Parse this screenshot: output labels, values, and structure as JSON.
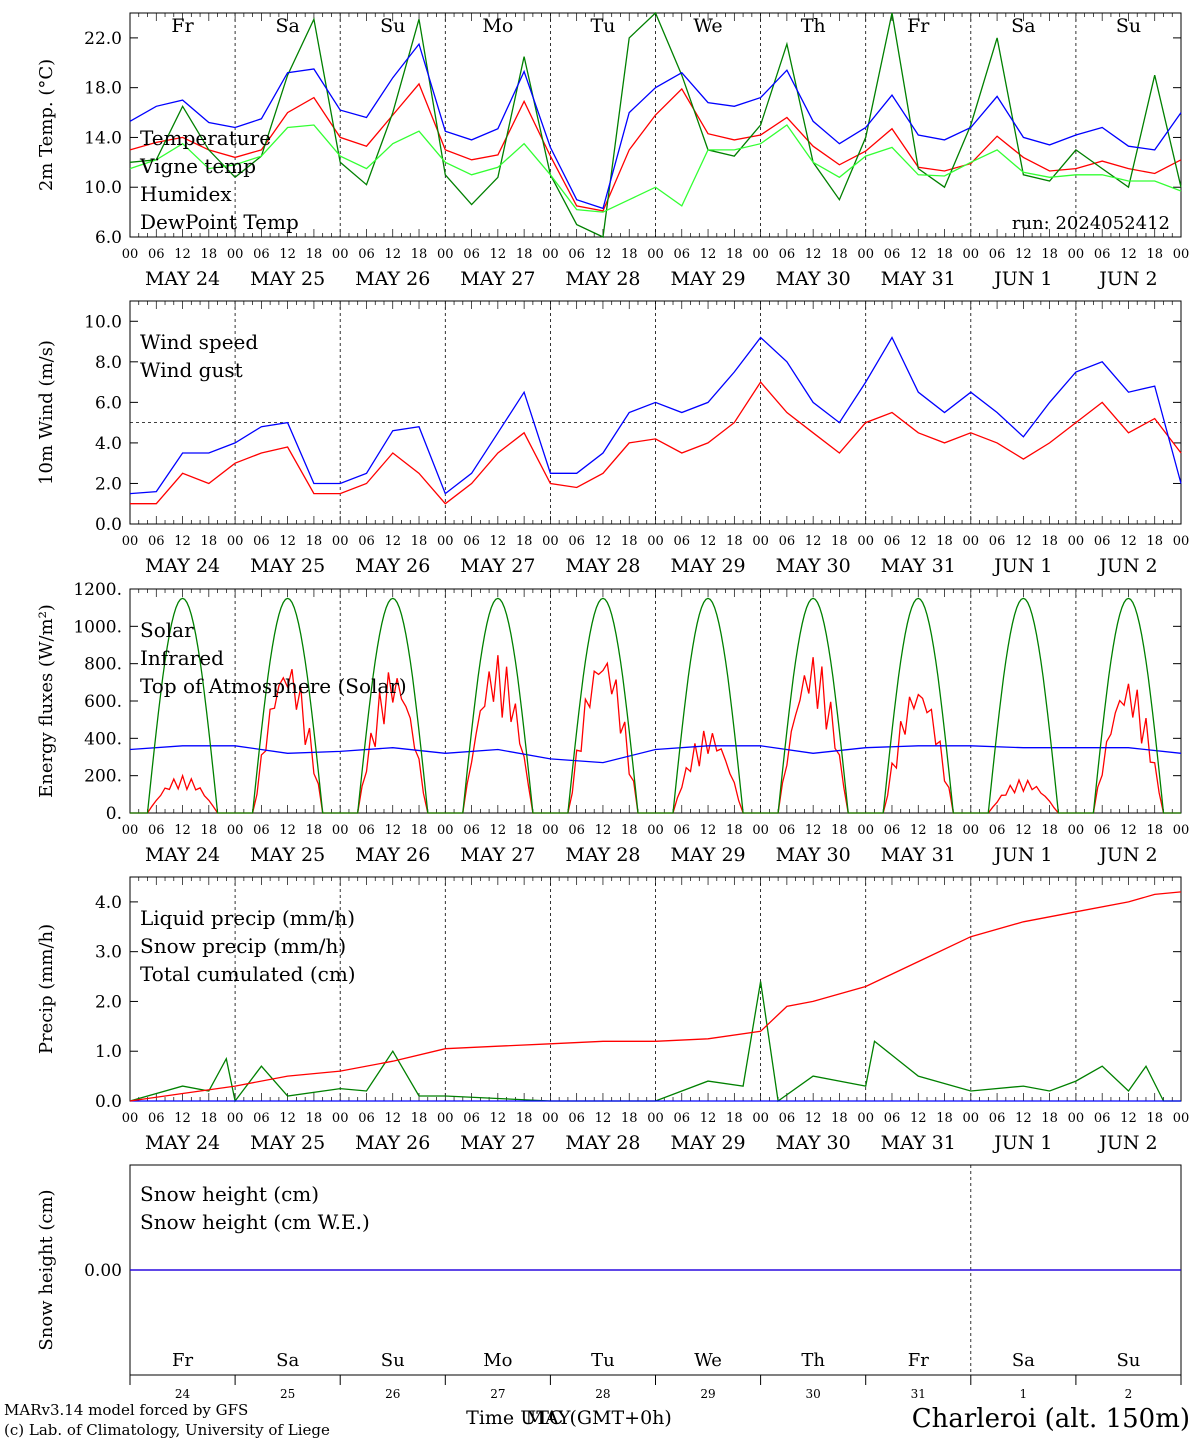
{
  "colors": {
    "red": "#ff0000",
    "green": "#008000",
    "blue": "#0000ff",
    "lightgreen": "#33ff33",
    "purple": "#800080"
  },
  "days": [
    {
      "abbr": "Fr",
      "weekend": false,
      "date": "MAY 24",
      "num": "24"
    },
    {
      "abbr": "Sa",
      "weekend": true,
      "date": "MAY 25",
      "num": "25"
    },
    {
      "abbr": "Su",
      "weekend": true,
      "date": "MAY 26",
      "num": "26"
    },
    {
      "abbr": "Mo",
      "weekend": false,
      "date": "MAY 27",
      "num": "27"
    },
    {
      "abbr": "Tu",
      "weekend": false,
      "date": "MAY 28",
      "num": "28"
    },
    {
      "abbr": "We",
      "weekend": false,
      "date": "MAY 29",
      "num": "29"
    },
    {
      "abbr": "Th",
      "weekend": false,
      "date": "MAY 30",
      "num": "30"
    },
    {
      "abbr": "Fr",
      "weekend": false,
      "date": "MAY 31",
      "num": "31"
    },
    {
      "abbr": "Sa",
      "weekend": true,
      "date": "JUN  1",
      "num": "1"
    },
    {
      "abbr": "Su",
      "weekend": true,
      "date": "JUN  2",
      "num": "2"
    }
  ],
  "hour_labels": [
    "00",
    "06",
    "12",
    "18"
  ],
  "hour_end_label": "00",
  "footer": {
    "model": "MARv3.14 model forced by GFS",
    "lab": "(c) Lab. of Climatology, University of Liege",
    "xlabel": "Time UTC (GMT+0h)",
    "xlabel_overlay": "MAY",
    "station": "Charleroi (alt. 150m)"
  },
  "chart_data": [
    {
      "id": "temp",
      "type": "line",
      "ylabel": "2m Temp. (°C)",
      "ylim": [
        6,
        24
      ],
      "yticks": [
        "6.0",
        "10.0",
        "14.0",
        "18.0",
        "22.0"
      ],
      "ytick_values": [
        6,
        10,
        14,
        18,
        22
      ],
      "annotation": "run: 2024052412",
      "series": [
        {
          "name": "Temperature",
          "color": "#ff0000",
          "x": [
            0,
            6,
            12,
            18,
            24,
            30,
            36,
            42,
            48,
            54,
            60,
            66,
            72,
            78,
            84,
            90,
            96,
            102,
            108,
            114,
            120,
            126,
            132,
            138,
            144,
            150,
            156,
            162,
            168,
            174,
            180,
            186,
            192,
            198,
            204,
            210,
            216,
            222,
            228,
            234,
            240
          ],
          "values": [
            13,
            13.6,
            14,
            13,
            12.4,
            13,
            16,
            17.2,
            14,
            13.3,
            15.8,
            18.3,
            13,
            12.2,
            12.6,
            16.9,
            12.5,
            8.5,
            8.1,
            13,
            15.8,
            17.9,
            14.3,
            13.8,
            14.2,
            15.6,
            13.3,
            11.8,
            12.9,
            14.7,
            11.6,
            11.3,
            11.9,
            14.1,
            12.4,
            11.3,
            11.5,
            12.1,
            11.5,
            11.1,
            12.2
          ]
        },
        {
          "name": "Vigne temp",
          "color": "#008000",
          "x": [
            0,
            6,
            12,
            18,
            24,
            30,
            36,
            42,
            48,
            54,
            60,
            66,
            72,
            78,
            84,
            90,
            96,
            102,
            108,
            114,
            120,
            126,
            132,
            138,
            144,
            150,
            156,
            162,
            168,
            174,
            180,
            186,
            192,
            198,
            204,
            210,
            216,
            222,
            228,
            234,
            240
          ],
          "values": [
            12,
            12.2,
            16.5,
            13,
            10.8,
            12.5,
            19,
            23.5,
            12,
            10.2,
            16,
            23.5,
            11,
            8.6,
            10.8,
            20.5,
            11,
            7,
            6,
            22,
            24,
            19,
            13,
            12.5,
            15,
            21.5,
            12,
            9,
            14,
            24,
            11.5,
            10,
            15,
            22,
            11,
            10.5,
            13,
            11.5,
            10,
            19,
            10
          ]
        },
        {
          "name": "Humidex",
          "color": "#0000ff",
          "x": [
            0,
            6,
            12,
            18,
            24,
            30,
            36,
            42,
            48,
            54,
            60,
            66,
            72,
            78,
            84,
            90,
            96,
            102,
            108,
            114,
            120,
            126,
            132,
            138,
            144,
            150,
            156,
            162,
            168,
            174,
            180,
            186,
            192,
            198,
            204,
            210,
            216,
            222,
            228,
            234,
            240
          ],
          "values": [
            15.3,
            16.5,
            17,
            15.2,
            14.8,
            15.5,
            19.2,
            19.5,
            16.2,
            15.6,
            18.8,
            21.5,
            14.5,
            13.8,
            14.7,
            19.3,
            13.2,
            9,
            8.3,
            16,
            18,
            19.2,
            16.8,
            16.5,
            17.2,
            19.4,
            15.3,
            13.5,
            14.8,
            17.4,
            14.2,
            13.8,
            14.8,
            17.3,
            14,
            13.4,
            14.2,
            14.8,
            13.3,
            13,
            16
          ]
        },
        {
          "name": "DewPoint Temp",
          "color": "#33ff33",
          "x": [
            0,
            6,
            12,
            18,
            24,
            30,
            36,
            42,
            48,
            54,
            60,
            66,
            72,
            78,
            84,
            90,
            96,
            102,
            108,
            114,
            120,
            126,
            132,
            138,
            144,
            150,
            156,
            162,
            168,
            174,
            180,
            186,
            192,
            198,
            204,
            210,
            216,
            222,
            228,
            234,
            240
          ],
          "values": [
            11.5,
            12.2,
            13.5,
            11.5,
            11.8,
            12.5,
            14.8,
            15,
            12.5,
            11.5,
            13.5,
            14.5,
            12,
            11,
            11.6,
            13.5,
            11,
            8.2,
            8,
            9,
            10,
            8.5,
            13,
            13,
            13.5,
            15,
            12,
            10.8,
            12.5,
            13.2,
            11,
            10.9,
            12,
            13,
            11.2,
            10.8,
            11,
            11,
            10.5,
            10.5,
            9.7
          ]
        }
      ]
    },
    {
      "id": "wind",
      "type": "line",
      "ylabel": "10m Wind (m/s)",
      "ylim": [
        0,
        11
      ],
      "yticks": [
        "0.0",
        "2.0",
        "4.0",
        "6.0",
        "8.0",
        "10.0"
      ],
      "ytick_values": [
        0,
        2,
        4,
        6,
        8,
        10
      ],
      "reference_line": 5,
      "series": [
        {
          "name": "Wind speed",
          "color": "#ff0000",
          "x": [
            0,
            6,
            12,
            18,
            24,
            30,
            36,
            42,
            48,
            54,
            60,
            66,
            72,
            78,
            84,
            90,
            96,
            102,
            108,
            114,
            120,
            126,
            132,
            138,
            144,
            150,
            156,
            162,
            168,
            174,
            180,
            186,
            192,
            198,
            204,
            210,
            216,
            222,
            228,
            234,
            240
          ],
          "values": [
            1,
            1,
            2.5,
            2,
            3,
            3.5,
            3.8,
            1.5,
            1.5,
            2,
            3.5,
            2.5,
            1,
            2,
            3.5,
            4.5,
            2,
            1.8,
            2.5,
            4,
            4.2,
            3.5,
            4,
            5,
            7,
            5.5,
            4.5,
            3.5,
            5,
            5.5,
            4.5,
            4,
            4.5,
            4,
            3.2,
            4,
            5,
            6,
            4.5,
            5.2,
            3.5
          ]
        },
        {
          "name": "Wind gust",
          "color": "#0000ff",
          "x": [
            0,
            6,
            12,
            18,
            24,
            30,
            36,
            42,
            48,
            54,
            60,
            66,
            72,
            78,
            84,
            90,
            96,
            102,
            108,
            114,
            120,
            126,
            132,
            138,
            144,
            150,
            156,
            162,
            168,
            174,
            180,
            186,
            192,
            198,
            204,
            210,
            216,
            222,
            228,
            234,
            240
          ],
          "values": [
            1.5,
            1.6,
            3.5,
            3.5,
            4,
            4.8,
            5,
            2,
            2,
            2.5,
            4.6,
            4.8,
            1.5,
            2.5,
            4.5,
            6.5,
            2.5,
            2.5,
            3.5,
            5.5,
            6,
            5.5,
            6,
            7.5,
            9.2,
            8,
            6,
            5,
            7,
            9.2,
            6.5,
            5.5,
            6.5,
            5.5,
            4.3,
            6,
            7.5,
            8,
            6.5,
            6.8,
            2
          ]
        }
      ]
    },
    {
      "id": "energy",
      "type": "line",
      "ylabel": "Energy fluxes (W/m²)",
      "ylim": [
        0,
        1200
      ],
      "yticks": [
        "0.",
        "200.",
        "400.",
        "600.",
        "800.",
        "1000.",
        "1200."
      ],
      "ytick_values": [
        0,
        200,
        400,
        600,
        800,
        1000,
        1200
      ],
      "series": [
        {
          "name": "Solar",
          "color": "#ff0000",
          "daily_peaks": [
            200,
            820,
            780,
            850,
            880,
            450,
            850,
            700,
            180,
            720
          ]
        },
        {
          "name": "Infrared",
          "color": "#0000ff",
          "x": [
            0,
            12,
            24,
            36,
            48,
            60,
            72,
            84,
            96,
            108,
            120,
            132,
            144,
            156,
            168,
            180,
            192,
            204,
            216,
            228,
            240
          ],
          "values": [
            340,
            360,
            360,
            320,
            330,
            350,
            320,
            340,
            290,
            270,
            340,
            360,
            360,
            320,
            350,
            360,
            360,
            350,
            350,
            350,
            320
          ]
        },
        {
          "name": "Top of Atmosphere (Solar)",
          "color": "#008000",
          "daily_peak": 1150,
          "sunrise_hour": 4,
          "sunset_hour": 20
        }
      ]
    },
    {
      "id": "precip",
      "type": "line",
      "ylabel": "Precip (mm/h)",
      "ylim": [
        0,
        4.5
      ],
      "yticks": [
        "0.0",
        "1.0",
        "2.0",
        "3.0",
        "4.0"
      ],
      "ytick_values": [
        0,
        1,
        2,
        3,
        4
      ],
      "series": [
        {
          "name": "Liquid precip (mm/h)",
          "color": "#008000",
          "x": [
            0,
            12,
            18,
            22,
            24,
            30,
            36,
            48,
            54,
            60,
            66,
            72,
            84,
            96,
            120,
            132,
            140,
            144,
            148,
            156,
            168,
            170,
            180,
            192,
            204,
            210,
            216,
            222,
            228,
            232,
            236,
            240
          ],
          "values": [
            0,
            0.3,
            0.2,
            0.85,
            0,
            0.7,
            0.1,
            0.25,
            0.2,
            1.0,
            0.1,
            0.1,
            0.05,
            0,
            0,
            0.4,
            0.3,
            2.4,
            0,
            0.5,
            0.3,
            1.2,
            0.5,
            0.2,
            0.3,
            0.2,
            0.4,
            0.7,
            0.2,
            0.7,
            0,
            0
          ]
        },
        {
          "name": "Snow precip (mm/h)",
          "color": "#0000ff",
          "x": [
            0,
            240
          ],
          "values": [
            0,
            0
          ]
        },
        {
          "name": "Total cumulated (cm)",
          "color": "#ff0000",
          "x": [
            0,
            12,
            24,
            36,
            48,
            60,
            72,
            84,
            96,
            108,
            120,
            132,
            144,
            150,
            156,
            168,
            180,
            192,
            204,
            216,
            228,
            234,
            240
          ],
          "values": [
            0,
            0.15,
            0.3,
            0.5,
            0.6,
            0.8,
            1.05,
            1.1,
            1.15,
            1.2,
            1.2,
            1.25,
            1.4,
            1.9,
            2.0,
            2.3,
            2.8,
            3.3,
            3.6,
            3.8,
            4.0,
            4.15,
            4.2
          ]
        }
      ]
    },
    {
      "id": "snow",
      "type": "line",
      "ylabel": "Snow height (cm)",
      "ylim": [
        -1,
        1
      ],
      "yticks": [
        "0.00"
      ],
      "ytick_values": [
        0
      ],
      "series": [
        {
          "name": "Snow height (cm)",
          "color": "#ff0000",
          "x": [
            0,
            240
          ],
          "values": [
            0,
            0
          ]
        },
        {
          "name": "Snow height (cm W.E.)",
          "color": "#0000ff",
          "x": [
            0,
            240
          ],
          "values": [
            0,
            0
          ]
        }
      ]
    }
  ]
}
